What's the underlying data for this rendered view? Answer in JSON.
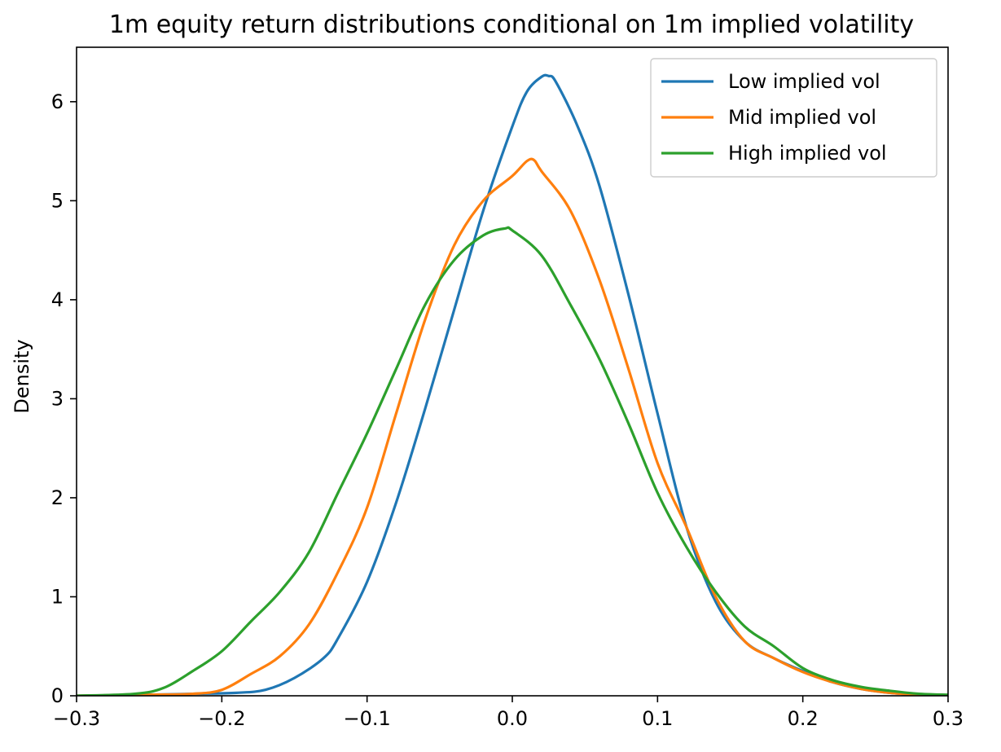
{
  "chart_data": {
    "type": "line",
    "title": "1m equity return distributions conditional on 1m implied volatility",
    "xlabel": "",
    "ylabel": "Density",
    "xlim": [
      -0.3,
      0.3
    ],
    "ylim": [
      0,
      6.55
    ],
    "xticks": [
      "−0.3",
      "−0.2",
      "−0.1",
      "0.0",
      "0.1",
      "0.2",
      "0.3"
    ],
    "yticks": [
      "0",
      "1",
      "2",
      "3",
      "4",
      "5",
      "6"
    ],
    "legend_position": "upper right",
    "grid": false,
    "series": [
      {
        "name": "Low implied vol",
        "color": "#1f77b4",
        "x": [
          -0.3,
          -0.25,
          -0.22,
          -0.19,
          -0.17,
          -0.15,
          -0.13,
          -0.12,
          -0.1,
          -0.08,
          -0.06,
          -0.04,
          -0.02,
          0.0,
          0.01,
          0.02,
          0.025,
          0.03,
          0.045,
          0.06,
          0.08,
          0.1,
          0.12,
          0.14,
          0.16,
          0.18,
          0.2,
          0.22,
          0.24,
          0.26,
          0.28,
          0.3
        ],
        "y": [
          0.0,
          0.01,
          0.02,
          0.03,
          0.06,
          0.18,
          0.38,
          0.58,
          1.15,
          1.95,
          2.9,
          3.9,
          4.9,
          5.75,
          6.1,
          6.25,
          6.26,
          6.2,
          5.75,
          5.15,
          4.05,
          2.85,
          1.7,
          0.95,
          0.55,
          0.38,
          0.25,
          0.14,
          0.07,
          0.03,
          0.01,
          0.0
        ]
      },
      {
        "name": "Mid implied vol",
        "color": "#ff7f0e",
        "x": [
          -0.3,
          -0.25,
          -0.22,
          -0.2,
          -0.18,
          -0.16,
          -0.14,
          -0.12,
          -0.1,
          -0.08,
          -0.06,
          -0.04,
          -0.02,
          0.0,
          0.01,
          0.015,
          0.02,
          0.04,
          0.06,
          0.08,
          0.1,
          0.12,
          0.14,
          0.16,
          0.18,
          0.2,
          0.22,
          0.24,
          0.26,
          0.28,
          0.3
        ],
        "y": [
          0.0,
          0.01,
          0.02,
          0.06,
          0.22,
          0.4,
          0.72,
          1.25,
          1.9,
          2.85,
          3.8,
          4.55,
          5.0,
          5.25,
          5.4,
          5.41,
          5.3,
          4.9,
          4.2,
          3.3,
          2.35,
          1.7,
          1.0,
          0.55,
          0.38,
          0.24,
          0.14,
          0.07,
          0.03,
          0.01,
          0.0
        ]
      },
      {
        "name": "High implied vol",
        "color": "#2ca02c",
        "x": [
          -0.3,
          -0.26,
          -0.24,
          -0.22,
          -0.2,
          -0.18,
          -0.16,
          -0.14,
          -0.12,
          -0.1,
          -0.08,
          -0.06,
          -0.04,
          -0.02,
          -0.005,
          0.0,
          0.02,
          0.04,
          0.06,
          0.08,
          0.1,
          0.12,
          0.14,
          0.16,
          0.18,
          0.2,
          0.22,
          0.24,
          0.26,
          0.28,
          0.3
        ],
        "y": [
          0.0,
          0.02,
          0.08,
          0.25,
          0.45,
          0.75,
          1.05,
          1.45,
          2.05,
          2.65,
          3.3,
          3.95,
          4.4,
          4.65,
          4.72,
          4.7,
          4.45,
          3.95,
          3.4,
          2.75,
          2.05,
          1.5,
          1.05,
          0.7,
          0.5,
          0.28,
          0.16,
          0.09,
          0.05,
          0.02,
          0.01
        ]
      }
    ]
  }
}
